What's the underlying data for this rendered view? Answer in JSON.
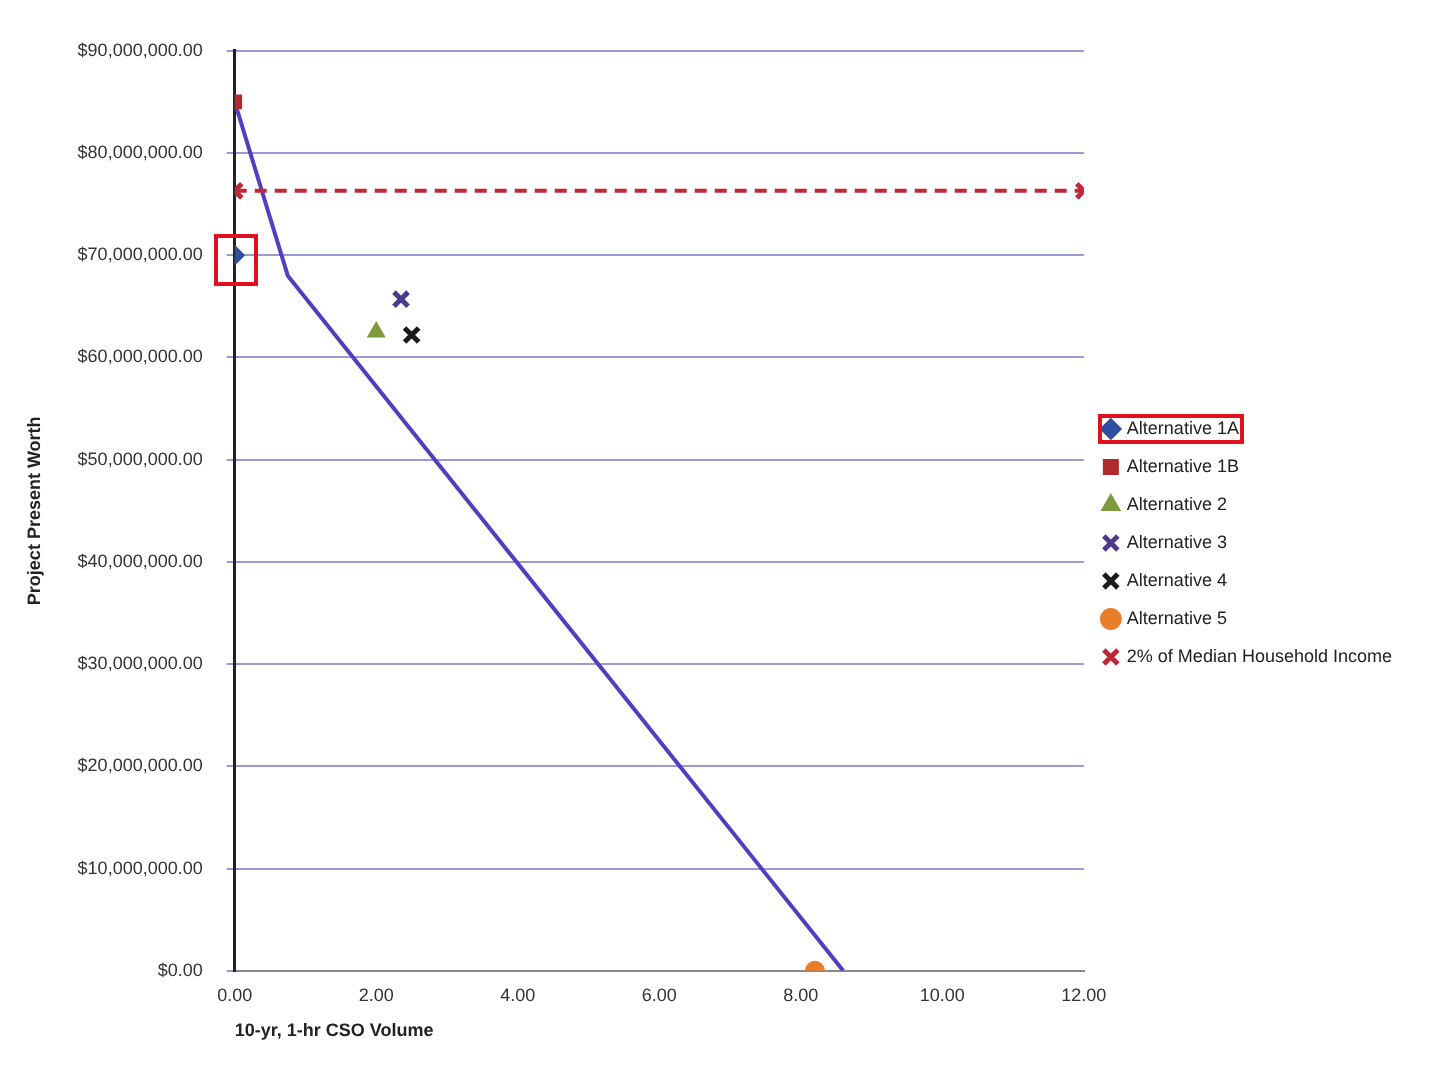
{
  "chart_data": {
    "type": "scatter",
    "xlabel": "10-yr, 1-hr CSO Volume",
    "ylabel": "Project Present Worth",
    "xlim": [
      0,
      12
    ],
    "xticks": [
      {
        "value": 0,
        "label": "0.00"
      },
      {
        "value": 2,
        "label": "2.00"
      },
      {
        "value": 4,
        "label": "4.00"
      },
      {
        "value": 6,
        "label": "6.00"
      },
      {
        "value": 8,
        "label": "8.00"
      },
      {
        "value": 10,
        "label": "10.00"
      },
      {
        "value": 12,
        "label": "12.00"
      }
    ],
    "ylim": [
      0,
      90000000
    ],
    "yticks": [
      {
        "value": 0,
        "label": "$0.00"
      },
      {
        "value": 10000000,
        "label": "$10,000,000.00"
      },
      {
        "value": 20000000,
        "label": "$20,000,000.00"
      },
      {
        "value": 30000000,
        "label": "$30,000,000.00"
      },
      {
        "value": 40000000,
        "label": "$40,000,000.00"
      },
      {
        "value": 50000000,
        "label": "$50,000,000.00"
      },
      {
        "value": 60000000,
        "label": "$60,000,000.00"
      },
      {
        "value": 70000000,
        "label": "$70,000,000.00"
      },
      {
        "value": 80000000,
        "label": "$80,000,000.00"
      },
      {
        "value": 90000000,
        "label": "$90,000,000.00"
      }
    ],
    "grid": "y",
    "legend": "right",
    "series": [
      {
        "name": "Alternative 1A",
        "marker": "diamond",
        "color": "#2f4f9f",
        "x": [
          0
        ],
        "values": [
          70000000
        ]
      },
      {
        "name": "Alternative 1B",
        "marker": "square",
        "color": "#b02a2a",
        "x": [
          0
        ],
        "values": [
          85000000
        ]
      },
      {
        "name": "Alternative 2",
        "marker": "triangle",
        "color": "#7f9a3c",
        "x": [
          2
        ],
        "values": [
          62500000
        ]
      },
      {
        "name": "Alternative 3",
        "marker": "cross",
        "color": "#4b3a8c",
        "x": [
          2.35
        ],
        "values": [
          65700000
        ]
      },
      {
        "name": "Alternative 4",
        "marker": "cross",
        "color": "#1a1a1a",
        "x": [
          2.5
        ],
        "values": [
          62200000
        ]
      },
      {
        "name": "Alternative 5",
        "marker": "circle",
        "color": "#e87d2a",
        "x": [
          8.2
        ],
        "values": [
          0
        ]
      },
      {
        "name": "2% of Median Household Income",
        "type": "line",
        "marker": "cross",
        "line_style": "dashed",
        "color": "#c0283a",
        "x": [
          0,
          12
        ],
        "values": [
          76300000,
          76300000
        ]
      },
      {
        "type": "line",
        "marker": "none",
        "line_style": "solid",
        "color": "#5040c0",
        "x": [
          0,
          0.75,
          8.6
        ],
        "values": [
          85000000,
          68000000,
          0
        ]
      }
    ]
  }
}
